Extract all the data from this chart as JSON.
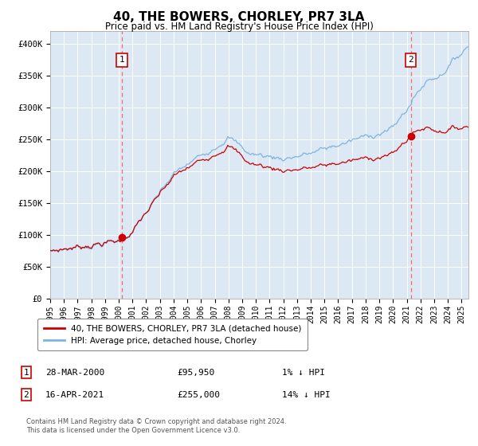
{
  "title": "40, THE BOWERS, CHORLEY, PR7 3LA",
  "subtitle": "Price paid vs. HM Land Registry's House Price Index (HPI)",
  "ylim": [
    0,
    420000
  ],
  "xlim_start": 1995.0,
  "xlim_end": 2025.5,
  "fig_bg_color": "#ffffff",
  "plot_bg_color": "#dce9f5",
  "grid_color": "#ffffff",
  "hpi_color": "#7fb3e0",
  "price_color": "#cc0000",
  "marker_color": "#cc0000",
  "vline_color": "#ff6666",
  "sale1_date": 2000.24,
  "sale1_price": 95950,
  "sale1_label": "1",
  "sale2_date": 2021.29,
  "sale2_price": 255000,
  "sale2_label": "2",
  "legend_label1": "40, THE BOWERS, CHORLEY, PR7 3LA (detached house)",
  "legend_label2": "HPI: Average price, detached house, Chorley",
  "table_row1": [
    "1",
    "28-MAR-2000",
    "£95,950",
    "1% ↓ HPI"
  ],
  "table_row2": [
    "2",
    "16-APR-2021",
    "£255,000",
    "14% ↓ HPI"
  ],
  "footnote": "Contains HM Land Registry data © Crown copyright and database right 2024.\nThis data is licensed under the Open Government Licence v3.0.",
  "yticks": [
    0,
    50000,
    100000,
    150000,
    200000,
    250000,
    300000,
    350000,
    400000
  ],
  "ytick_labels": [
    "£0",
    "£50K",
    "£100K",
    "£150K",
    "£200K",
    "£250K",
    "£300K",
    "£350K",
    "£400K"
  ]
}
